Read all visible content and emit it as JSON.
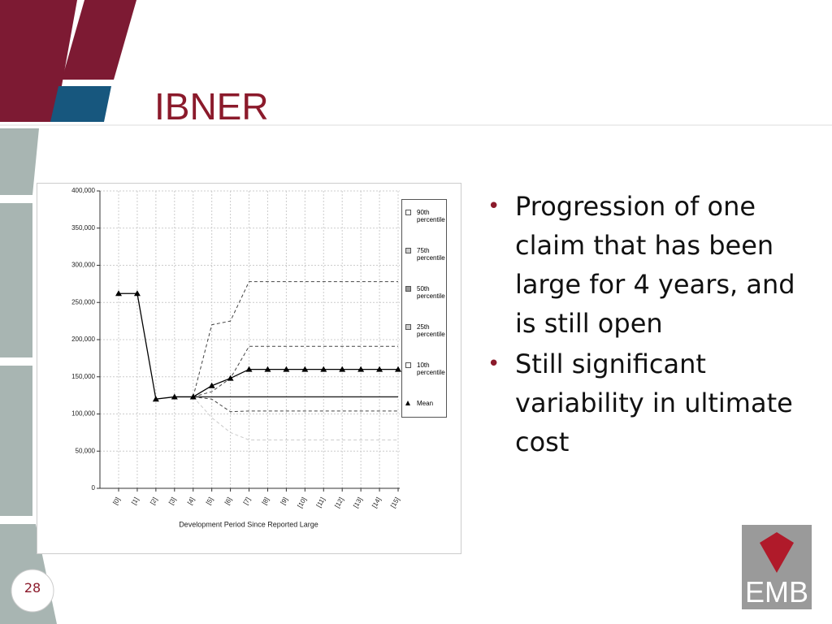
{
  "slide": {
    "title": "IBNER",
    "bullets": [
      "Progression of one claim that has been large for 4 years, and is still open",
      "Still significant variability in ultimate cost"
    ],
    "page_number": "28",
    "logo": "EMB"
  },
  "chart_data": {
    "type": "line",
    "x_label": "Development Period Since Reported Large",
    "categories": [
      "[0]",
      "[1]",
      "[2]",
      "[3]",
      "[4]",
      "[5]",
      "[6]",
      "[7]",
      "[8]",
      "[9]",
      "[10]",
      "[11]",
      "[12]",
      "[13]",
      "[14]",
      "[15]"
    ],
    "ylim": [
      0,
      400000
    ],
    "yticks": [
      0,
      {
        "value": 50000,
        "label": "50,000"
      },
      {
        "value": 100000,
        "label": "100,000"
      },
      {
        "value": 150000,
        "label": "150,000"
      },
      {
        "value": 200000,
        "label": "200,000"
      },
      {
        "value": 250000,
        "label": "250,000"
      },
      {
        "value": 300000,
        "label": "300,000"
      },
      {
        "value": 350000,
        "label": "350,000"
      },
      {
        "value": 400000,
        "label": "400,000"
      }
    ],
    "grid": true,
    "series": [
      {
        "name": "90th percentile",
        "color": "#444444",
        "dashed": true,
        "values": [
          null,
          null,
          null,
          null,
          123000,
          220000,
          225000,
          278000,
          278000,
          278000,
          278000,
          278000,
          278000,
          278000,
          278000,
          278000
        ]
      },
      {
        "name": "75th percentile",
        "color": "#444444",
        "dashed": true,
        "values": [
          null,
          null,
          null,
          null,
          123000,
          130000,
          148000,
          191000,
          191000,
          191000,
          191000,
          191000,
          191000,
          191000,
          191000,
          191000
        ]
      },
      {
        "name": "50th percentile",
        "color": "#222222",
        "dashed": false,
        "values": [
          null,
          null,
          null,
          null,
          123000,
          123000,
          123000,
          123000,
          123000,
          123000,
          123000,
          123000,
          123000,
          123000,
          123000,
          123000
        ]
      },
      {
        "name": "25th percentile",
        "color": "#444444",
        "dashed": true,
        "values": [
          null,
          null,
          null,
          null,
          123000,
          120000,
          103000,
          104000,
          104000,
          104000,
          104000,
          104000,
          104000,
          104000,
          104000,
          104000
        ]
      },
      {
        "name": "10th percentile",
        "color": "#cccccc",
        "dashed": true,
        "values": [
          null,
          null,
          null,
          null,
          123000,
          95000,
          75000,
          65000,
          65000,
          65000,
          65000,
          65000,
          65000,
          65000,
          65000,
          65000
        ]
      },
      {
        "name": "Mean",
        "color": "#000000",
        "dashed": false,
        "marker": "triangle",
        "values": [
          262000,
          262000,
          120000,
          123000,
          123000,
          138000,
          148000,
          160000,
          160000,
          160000,
          160000,
          160000,
          160000,
          160000,
          160000,
          160000
        ]
      }
    ]
  }
}
